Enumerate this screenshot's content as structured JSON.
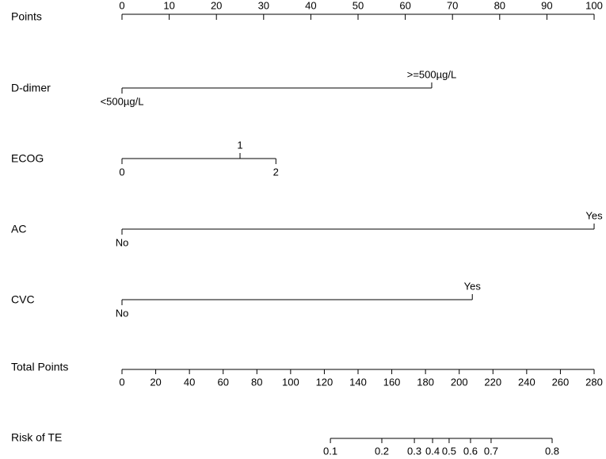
{
  "chart_data": {
    "type": "nomogram",
    "points_axis": {
      "label": "Points",
      "lim": [
        0,
        100
      ],
      "ticks": [
        0,
        10,
        20,
        30,
        40,
        50,
        60,
        70,
        80,
        90,
        100
      ]
    },
    "variables": [
      {
        "name": "D-dimer",
        "levels": [
          "<500µg/L",
          ">=500µg/L"
        ],
        "points": [
          0,
          65.6
        ]
      },
      {
        "name": "ECOG",
        "levels": [
          "0",
          "1",
          "2"
        ],
        "points": [
          0,
          25,
          32.6
        ]
      },
      {
        "name": "AC",
        "levels": [
          "No",
          "Yes"
        ],
        "points": [
          0,
          100
        ]
      },
      {
        "name": "CVC",
        "levels": [
          "No",
          "Yes"
        ],
        "points": [
          0,
          74.2
        ]
      }
    ],
    "total_points_axis": {
      "label": "Total Points",
      "lim": [
        0,
        280
      ],
      "ticks": [
        0,
        20,
        40,
        60,
        80,
        100,
        120,
        140,
        160,
        180,
        200,
        220,
        240,
        260,
        280
      ]
    },
    "risk_axis": {
      "label": "Risk of TE",
      "values": [
        0.1,
        0.2,
        0.3,
        0.4,
        0.5,
        0.6,
        0.7,
        0.8
      ],
      "total_points": [
        123.6,
        154.1,
        173.4,
        184.2,
        194,
        206.7,
        218.9,
        255.1
      ]
    }
  }
}
